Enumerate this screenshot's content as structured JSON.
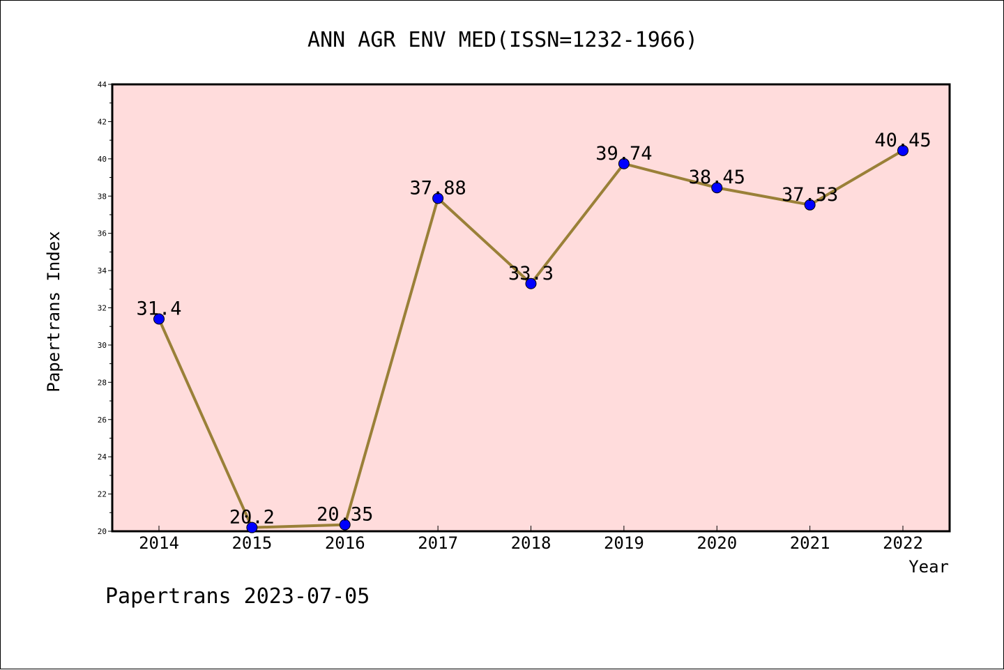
{
  "chart_data": {
    "type": "line",
    "title": "ANN AGR ENV MED(ISSN=1232-1966)",
    "xlabel": "Year",
    "ylabel": "Papertrans Index",
    "categories": [
      "2014",
      "2015",
      "2016",
      "2017",
      "2018",
      "2019",
      "2020",
      "2021",
      "2022"
    ],
    "values": [
      31.4,
      20.2,
      20.35,
      37.88,
      33.3,
      39.74,
      38.45,
      37.53,
      40.45
    ],
    "data_labels": [
      "31.4",
      "20.2",
      "20.35",
      "37.88",
      "33.3",
      "39.74",
      "38.45",
      "37.53",
      "40.45"
    ],
    "ylim": [
      20,
      44
    ],
    "yticks": [
      "20",
      "22",
      "24",
      "26",
      "28",
      "30",
      "32",
      "34",
      "36",
      "38",
      "40",
      "42",
      "44"
    ],
    "grid": false,
    "colors": {
      "plot_background": "#FFDCDC",
      "line": "#9A8038",
      "marker": "#0000FF"
    }
  },
  "footer": {
    "text": "Papertrans 2023-07-05"
  }
}
